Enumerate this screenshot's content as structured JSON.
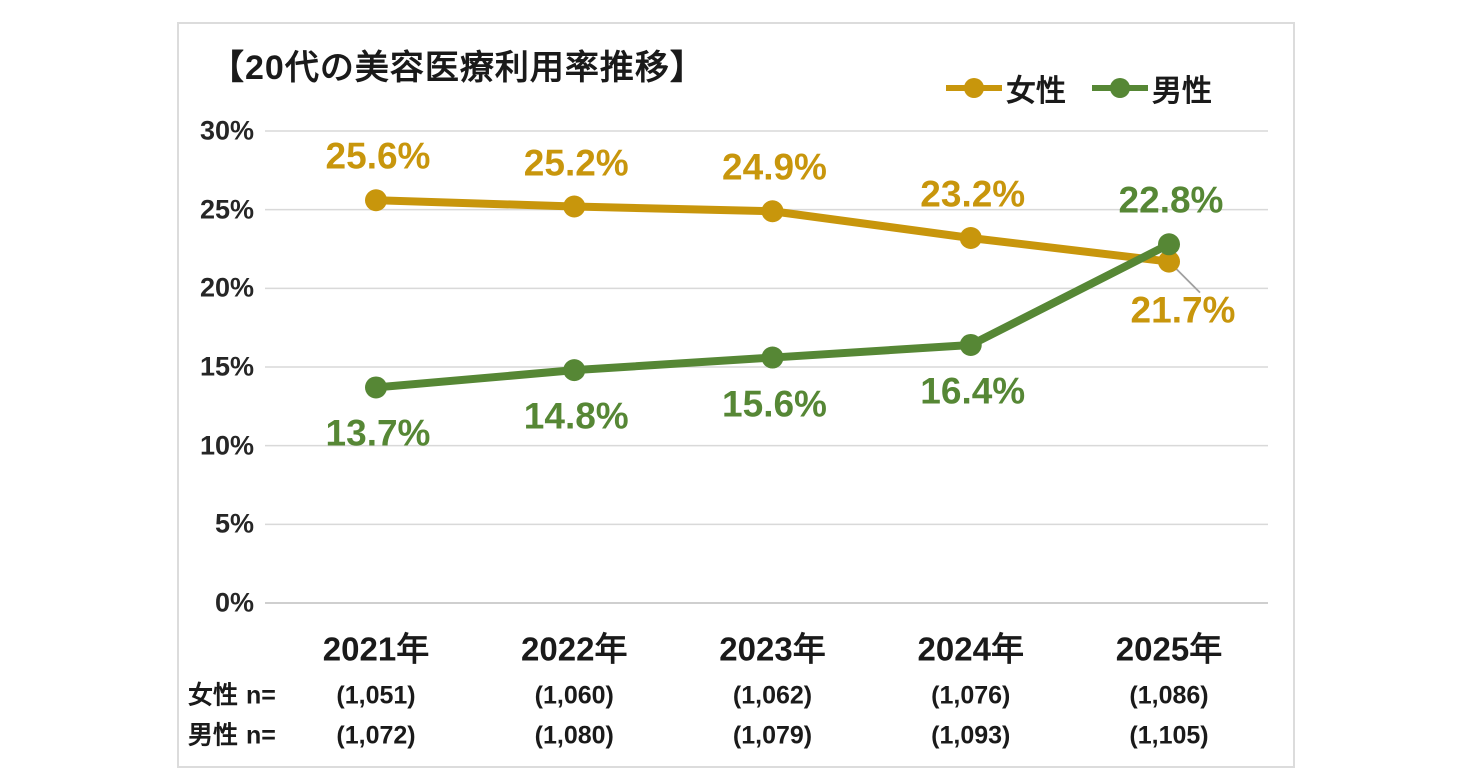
{
  "title": "【20代の美容医療利用率推移】",
  "chart_data": {
    "type": "line",
    "categories": [
      "2021年",
      "2022年",
      "2023年",
      "2024年",
      "2025年"
    ],
    "series": [
      {
        "id": "female",
        "name": "女性",
        "color": "#C8960C",
        "values": [
          25.6,
          25.2,
          24.9,
          23.2,
          21.7
        ],
        "labels": [
          "25.6%",
          "25.2%",
          "24.9%",
          "23.2%",
          "21.7%"
        ],
        "label_pos": [
          "above",
          "above",
          "above",
          "above",
          "below-right"
        ]
      },
      {
        "id": "male",
        "name": "男性",
        "color": "#568735",
        "values": [
          13.7,
          14.8,
          15.6,
          16.4,
          22.8
        ],
        "labels": [
          "13.7%",
          "14.8%",
          "15.6%",
          "16.4%",
          "22.8%"
        ],
        "label_pos": [
          "below",
          "below",
          "below",
          "below",
          "above"
        ]
      }
    ],
    "ylim": [
      0,
      30
    ],
    "ytick_step": 5,
    "ytick_suffix": "%",
    "value_suffix": "%",
    "ytick_labels": [
      "0%",
      "5%",
      "10%",
      "15%",
      "20%",
      "25%",
      "30%"
    ],
    "grid": true,
    "legend_position": "top-right",
    "leader_line_point": {
      "series": 0,
      "index": 4
    }
  },
  "sample_table": {
    "rows": [
      {
        "id": "female",
        "label": "女性",
        "n_label": "n=",
        "values": [
          "(1,051)",
          "(1,060)",
          "(1,062)",
          "(1,076)",
          "(1,086)"
        ]
      },
      {
        "id": "male",
        "label": "男性",
        "n_label": "n=",
        "values": [
          "(1,072)",
          "(1,080)",
          "(1,079)",
          "(1,093)",
          "(1,105)"
        ]
      }
    ]
  },
  "colors": {
    "female": "#C8960C",
    "male": "#568735",
    "gridline": "#D9D9D9",
    "axis_line": "#BFBFBF",
    "panel_border": "#DCDCDC",
    "leader_line": "#A0A0A0",
    "text": "#1A1A1A"
  }
}
